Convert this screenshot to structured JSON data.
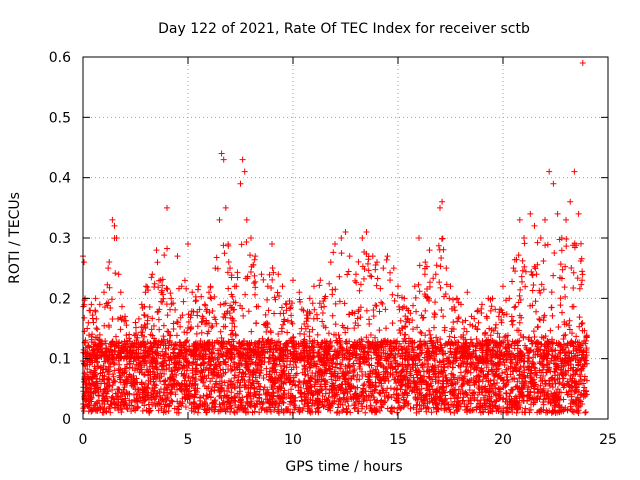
{
  "chart_data": {
    "type": "scatter",
    "title": "Day 122 of 2021, Rate Of TEC Index for receiver sctb",
    "xlabel": "GPS time / hours",
    "ylabel": "ROTI / TECUs",
    "xlim": [
      0,
      25
    ],
    "ylim": [
      0,
      0.6
    ],
    "xticks": [
      0,
      5,
      10,
      15,
      20,
      25
    ],
    "yticks": [
      0,
      0.1,
      0.2,
      0.3,
      0.4,
      0.5,
      0.6
    ],
    "xtick_labels": [
      "0",
      "5",
      "10",
      "15",
      "20",
      "25"
    ],
    "ytick_labels": [
      "0",
      "0.1",
      "0.2",
      "0.3",
      "0.4",
      "0.5",
      "0.6"
    ],
    "grid": true,
    "marker": "+",
    "marker_color": "#ff0000",
    "series": [
      {
        "x": [
          0.0,
          0.05,
          0.1,
          0.2,
          0.3,
          0.4,
          0.5,
          0.6,
          0.8,
          1.0,
          1.2,
          1.4,
          1.5,
          1.6,
          1.7,
          1.8,
          2.0,
          2.2,
          2.5,
          2.8,
          3.0,
          3.3,
          3.5,
          3.7,
          4.0,
          4.2,
          4.5,
          4.7,
          5.0,
          5.2,
          5.5,
          5.8,
          6.0,
          6.3,
          6.5,
          6.6,
          6.7,
          6.8,
          7.0,
          7.3,
          7.5,
          7.6,
          7.7,
          7.8,
          8.0,
          8.2,
          8.5,
          8.8,
          9.0,
          9.3,
          9.5,
          9.7,
          10.0,
          10.3,
          10.5,
          10.8,
          11.0,
          11.3,
          11.5,
          11.8,
          12.0,
          12.3,
          12.5,
          12.7,
          13.0,
          13.3,
          13.5,
          13.8,
          14.0,
          14.3,
          14.5,
          14.8,
          15.0,
          15.3,
          15.5,
          15.8,
          16.0,
          16.3,
          16.5,
          16.8,
          17.0,
          17.1,
          17.3,
          17.5,
          17.8,
          18.0,
          18.3,
          18.5,
          18.8,
          19.0,
          19.3,
          19.5,
          19.8,
          20.0,
          20.3,
          20.5,
          20.8,
          21.0,
          21.3,
          21.5,
          21.8,
          22.0,
          22.2,
          22.4,
          22.6,
          22.8,
          23.0,
          23.2,
          23.4,
          23.6,
          23.8
        ],
        "y": [
          0.27,
          0.26,
          0.2,
          0.15,
          0.18,
          0.19,
          0.16,
          0.2,
          0.19,
          0.21,
          0.25,
          0.33,
          0.32,
          0.3,
          0.24,
          0.21,
          0.17,
          0.14,
          0.16,
          0.19,
          0.22,
          0.24,
          0.28,
          0.23,
          0.35,
          0.2,
          0.27,
          0.22,
          0.29,
          0.21,
          0.22,
          0.19,
          0.21,
          0.25,
          0.33,
          0.44,
          0.43,
          0.35,
          0.25,
          0.22,
          0.39,
          0.43,
          0.41,
          0.33,
          0.3,
          0.27,
          0.24,
          0.22,
          0.29,
          0.24,
          0.22,
          0.19,
          0.23,
          0.21,
          0.18,
          0.2,
          0.22,
          0.23,
          0.2,
          0.26,
          0.29,
          0.3,
          0.31,
          0.27,
          0.24,
          0.3,
          0.31,
          0.27,
          0.26,
          0.25,
          0.27,
          0.25,
          0.22,
          0.2,
          0.18,
          0.22,
          0.3,
          0.26,
          0.28,
          0.24,
          0.35,
          0.36,
          0.25,
          0.22,
          0.2,
          0.19,
          0.21,
          0.17,
          0.18,
          0.19,
          0.2,
          0.2,
          0.17,
          0.22,
          0.2,
          0.25,
          0.33,
          0.3,
          0.34,
          0.32,
          0.3,
          0.33,
          0.41,
          0.39,
          0.34,
          0.3,
          0.33,
          0.36,
          0.41,
          0.34,
          0.59
        ],
        "dense_band": {
          "x_range": [
            0,
            24
          ],
          "y_range": [
            0.01,
            0.13
          ]
        }
      }
    ]
  }
}
